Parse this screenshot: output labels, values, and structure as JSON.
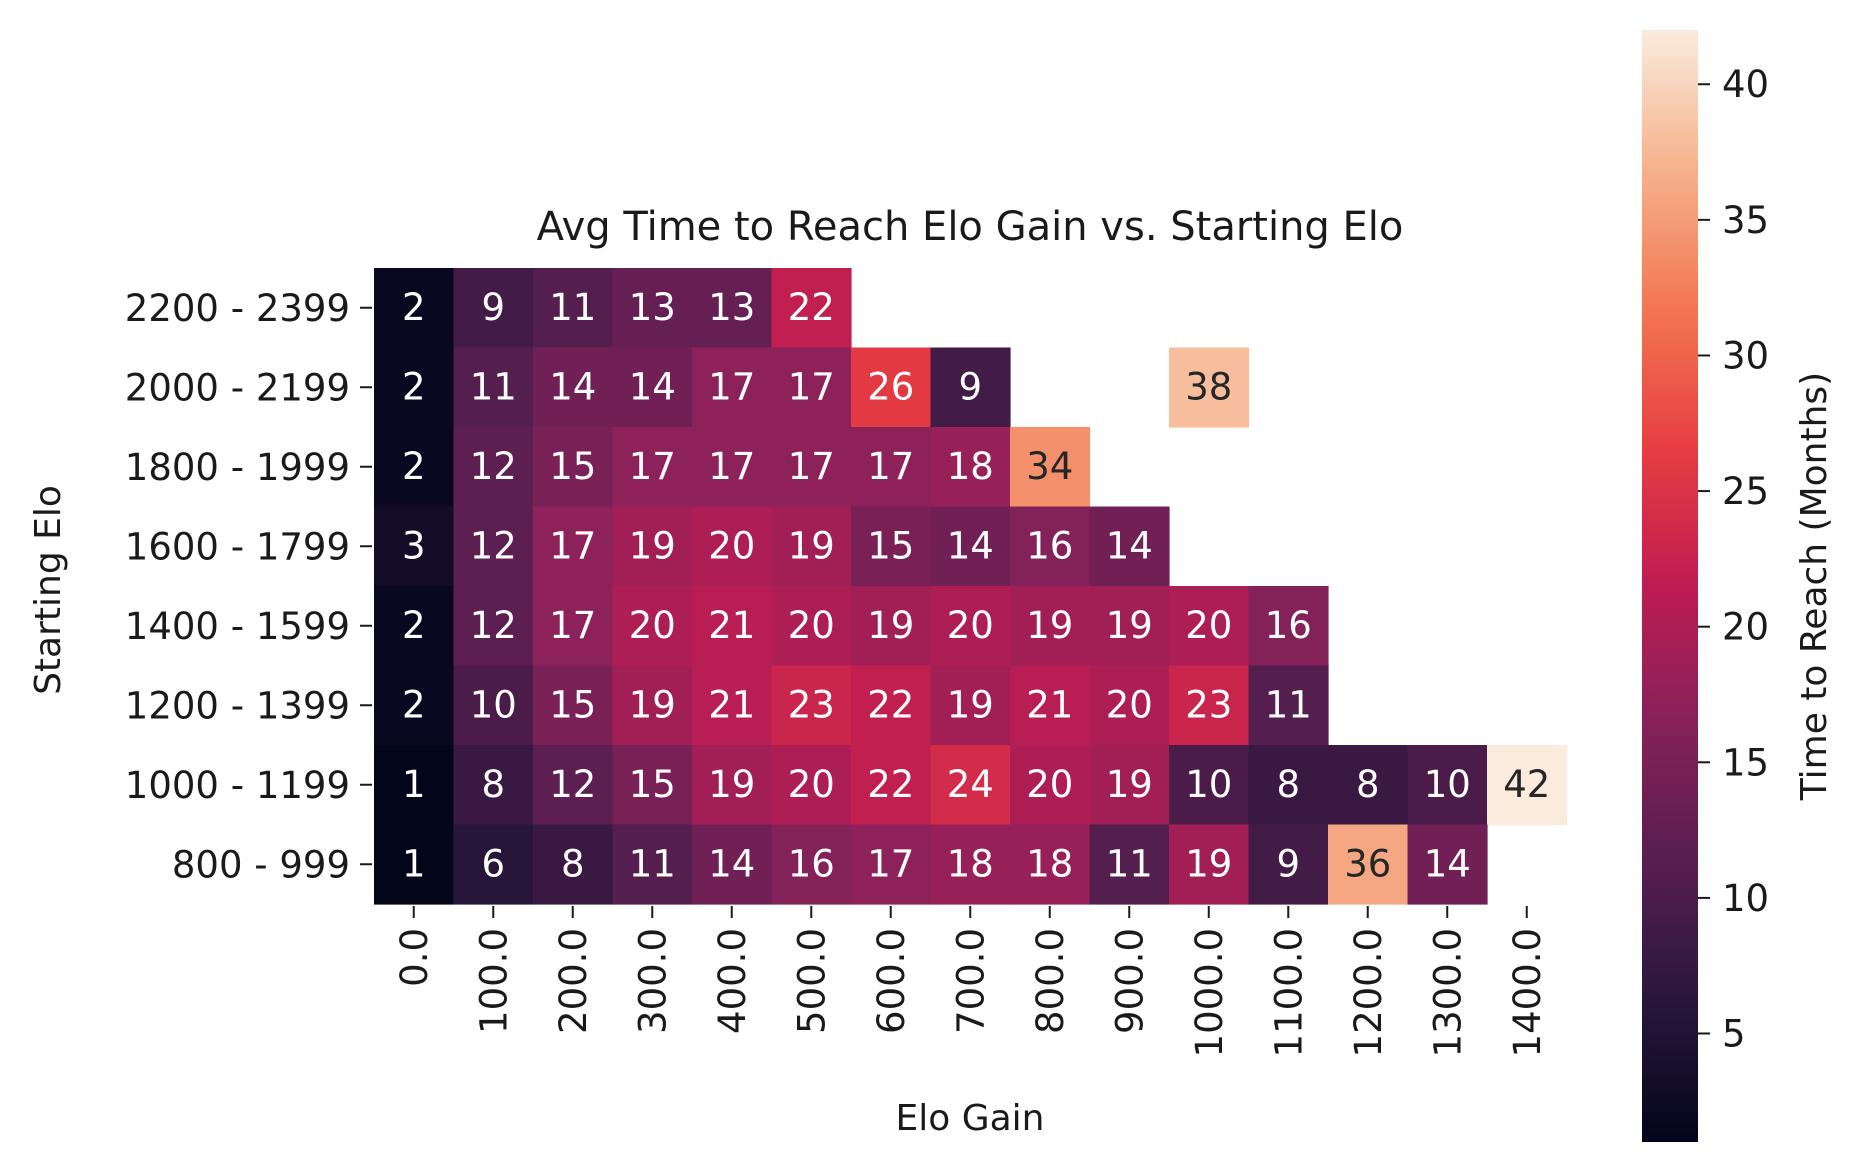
{
  "chart_data": {
    "type": "heatmap",
    "title": "Avg Time to Reach Elo Gain vs. Starting Elo",
    "xlabel": "Elo Gain",
    "ylabel": "Starting Elo",
    "x": [
      "0.0",
      "100.0",
      "200.0",
      "300.0",
      "400.0",
      "500.0",
      "600.0",
      "700.0",
      "800.0",
      "900.0",
      "1000.0",
      "1100.0",
      "1200.0",
      "1300.0",
      "1400.0"
    ],
    "y": [
      "2200 - 2399",
      "2000 - 2199",
      "1800 - 1999",
      "1600 - 1799",
      "1400 - 1599",
      "1200 - 1399",
      "1000 - 1199",
      "800 - 999"
    ],
    "values": [
      [
        2,
        9,
        11,
        13,
        13,
        22,
        null,
        null,
        null,
        null,
        null,
        null,
        null,
        null,
        null
      ],
      [
        2,
        11,
        14,
        14,
        17,
        17,
        26,
        9,
        null,
        null,
        38,
        null,
        null,
        null,
        null
      ],
      [
        2,
        12,
        15,
        17,
        17,
        17,
        17,
        18,
        34,
        null,
        null,
        null,
        null,
        null,
        null
      ],
      [
        3,
        12,
        17,
        19,
        20,
        19,
        15,
        14,
        16,
        14,
        null,
        null,
        null,
        null,
        null
      ],
      [
        2,
        12,
        17,
        20,
        21,
        20,
        19,
        20,
        19,
        19,
        20,
        16,
        null,
        null,
        null
      ],
      [
        2,
        10,
        15,
        19,
        21,
        23,
        22,
        19,
        21,
        20,
        23,
        11,
        null,
        null,
        null
      ],
      [
        1,
        8,
        12,
        15,
        19,
        20,
        22,
        24,
        20,
        19,
        10,
        8,
        8,
        10,
        42
      ],
      [
        1,
        6,
        8,
        11,
        14,
        16,
        17,
        18,
        18,
        11,
        19,
        9,
        36,
        14,
        null
      ]
    ],
    "colorbar": {
      "label": "Time to Reach (Months)",
      "min": 1,
      "max": 42,
      "ticks": [
        5,
        10,
        15,
        20,
        25,
        30,
        35,
        40
      ],
      "colormap": "rocket"
    },
    "grid": false,
    "legend": "colorbar right"
  }
}
